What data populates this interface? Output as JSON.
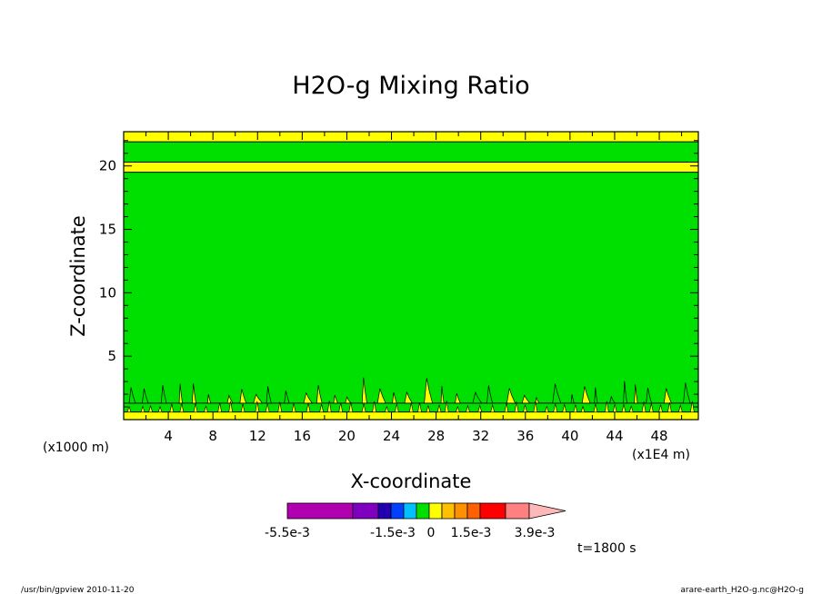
{
  "chart_data": {
    "type": "heatmap",
    "title": "H2O-g Mixing Ratio",
    "xlabel": "X-coordinate",
    "ylabel": "Z-coordinate",
    "x_unit_left": "(x1000 m)",
    "x_unit_right": "(x1E4 m)",
    "xlim": [
      0,
      51.5
    ],
    "ylim": [
      0,
      22.7
    ],
    "x_ticks": [
      4,
      8,
      12,
      16,
      20,
      24,
      28,
      32,
      36,
      40,
      44,
      48
    ],
    "y_ticks": [
      5,
      10,
      15,
      20
    ],
    "bands": [
      {
        "z_min": 0.0,
        "z_max": 0.6,
        "color": "#ffff00"
      },
      {
        "z_min": 0.6,
        "z_max": 1.3,
        "color": "#00e000"
      },
      {
        "z_min": 1.3,
        "z_max": 19.5,
        "color": "#00e000"
      },
      {
        "z_min": 19.5,
        "z_max": 20.3,
        "color": "#ffff00"
      },
      {
        "z_min": 20.3,
        "z_max": 21.9,
        "color": "#00e000"
      },
      {
        "z_min": 21.9,
        "z_max": 22.7,
        "color": "#ffff00"
      }
    ],
    "colorbar": {
      "colors": [
        "#b000b0",
        "#8000c0",
        "#2000b0",
        "#0040ff",
        "#00c0ff",
        "#00e000",
        "#ffff00",
        "#ffc000",
        "#ff9000",
        "#ff6000",
        "#ff0000",
        "#ff8080",
        "#ffb8b8"
      ],
      "labels": [
        "-5.5e-3",
        "-1.5e-3",
        "0",
        "1.5e-3",
        "3.9e-3"
      ]
    },
    "time_label": "t=1800 s",
    "footer_left": "/usr/bin/gpview  2010-11-20",
    "footer_right": "arare-earth_H2O-g.nc@H2O-g"
  }
}
